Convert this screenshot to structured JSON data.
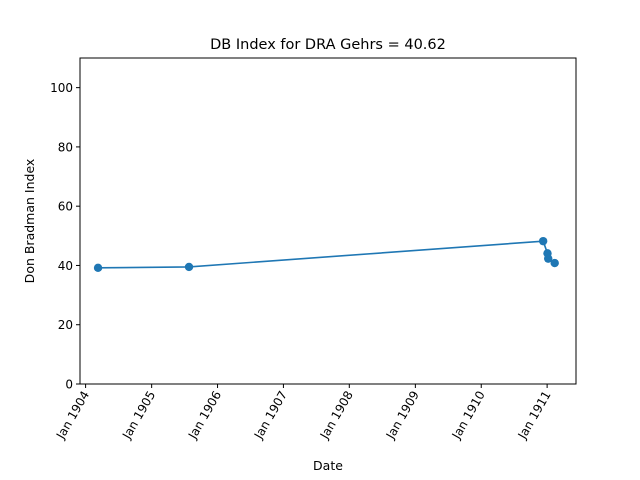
{
  "chart_data": {
    "type": "line",
    "title": "DB Index for DRA Gehrs = 40.62",
    "xlabel": "Date",
    "ylabel": "Don Bradman Index",
    "xlim": [
      "1903-12-01",
      "1911-06-10"
    ],
    "ylim": [
      0,
      110
    ],
    "x_ticks": [
      {
        "date": "1904-01-01",
        "label": "Jan 1904"
      },
      {
        "date": "1905-01-01",
        "label": "Jan 1905"
      },
      {
        "date": "1906-01-01",
        "label": "Jan 1906"
      },
      {
        "date": "1907-01-01",
        "label": "Jan 1907"
      },
      {
        "date": "1908-01-01",
        "label": "Jan 1908"
      },
      {
        "date": "1909-01-01",
        "label": "Jan 1909"
      },
      {
        "date": "1910-01-01",
        "label": "Jan 1910"
      },
      {
        "date": "1911-01-01",
        "label": "Jan 1911"
      }
    ],
    "y_ticks": [
      0,
      20,
      40,
      60,
      80,
      100
    ],
    "grid": false,
    "color": "#1f77b4",
    "series": [
      {
        "points": [
          {
            "x": "1904-03-10",
            "y": 39.2
          },
          {
            "x": "1905-07-27",
            "y": 39.5
          },
          {
            "x": "1910-12-10",
            "y": 48.2
          },
          {
            "x": "1911-01-03",
            "y": 44.1
          },
          {
            "x": "1911-01-07",
            "y": 42.3
          },
          {
            "x": "1911-02-12",
            "y": 40.8
          }
        ]
      }
    ]
  }
}
